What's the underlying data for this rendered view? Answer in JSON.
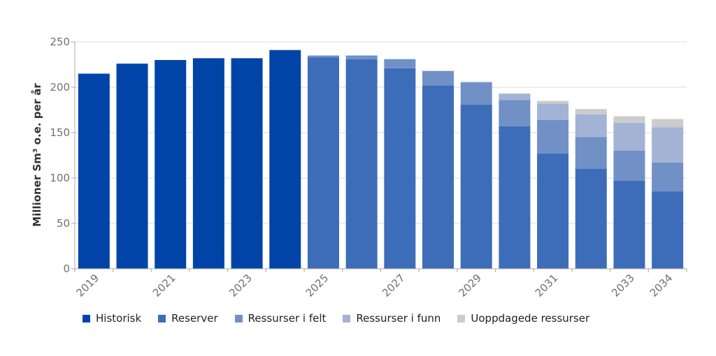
{
  "chart_data": {
    "type": "bar",
    "stacked": true,
    "categories": [
      "2019",
      "2020",
      "2021",
      "2022",
      "2023",
      "2024",
      "2025",
      "2026",
      "2027",
      "2028",
      "2029",
      "2030",
      "2031",
      "2032",
      "2033",
      "2034"
    ],
    "tick_labels": [
      "2019",
      "2021",
      "2023",
      "2025",
      "2027",
      "2029",
      "2031",
      "2033",
      "2034"
    ],
    "tick_label_categories": [
      0,
      2,
      4,
      6,
      8,
      10,
      12,
      14,
      15
    ],
    "ylabel": "Millioner Sm³ o.e. per år",
    "ylim": [
      0,
      250
    ],
    "yticks": [
      0,
      50,
      100,
      150,
      200,
      250
    ],
    "grid": true,
    "legend_position": "bottom",
    "series": [
      {
        "name": "Historisk",
        "color": "#0044a8",
        "values": [
          215,
          226,
          230,
          232,
          232,
          241,
          0,
          0,
          0,
          0,
          0,
          0,
          0,
          0,
          0,
          0
        ]
      },
      {
        "name": "Reserver",
        "color": "#3d6db8",
        "values": [
          0,
          0,
          0,
          0,
          0,
          0,
          233,
          231,
          221,
          202,
          181,
          157,
          127,
          110,
          97,
          85
        ]
      },
      {
        "name": "Ressurser i felt",
        "color": "#7090c6",
        "values": [
          0,
          0,
          0,
          0,
          0,
          0,
          2,
          4,
          10,
          16,
          24,
          29,
          37,
          35,
          33,
          32
        ]
      },
      {
        "name": "Ressurser i funn",
        "color": "#a3b3d5",
        "values": [
          0,
          0,
          0,
          0,
          0,
          0,
          0,
          0,
          0,
          0,
          1,
          7,
          18,
          25,
          31,
          39
        ]
      },
      {
        "name": "Uoppdagede ressurser",
        "color": "#cccccc",
        "values": [
          0,
          0,
          0,
          0,
          0,
          0,
          0,
          0,
          0,
          0,
          0,
          0,
          3,
          6,
          7,
          9
        ]
      }
    ]
  }
}
